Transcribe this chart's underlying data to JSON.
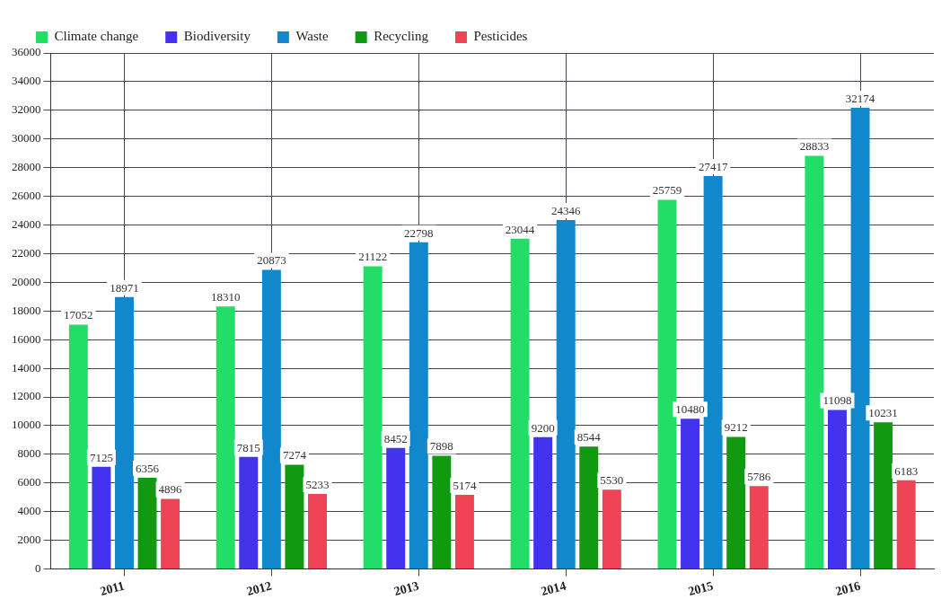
{
  "chart_data": {
    "type": "bar",
    "categories": [
      "2011",
      "2012",
      "2013",
      "2014",
      "2015",
      "2016"
    ],
    "series": [
      {
        "name": "Climate change",
        "color": "#22dd66",
        "values": [
          17052,
          18310,
          21122,
          23044,
          25759,
          28833
        ]
      },
      {
        "name": "Biodiversity",
        "color": "#4433ee",
        "values": [
          7125,
          7815,
          8452,
          9200,
          10480,
          11098
        ]
      },
      {
        "name": "Waste",
        "color": "#1188cc",
        "values": [
          18971,
          20873,
          22798,
          24346,
          27417,
          32174
        ]
      },
      {
        "name": "Recycling",
        "color": "#119911",
        "values": [
          6356,
          7274,
          7898,
          8544,
          9212,
          10231
        ]
      },
      {
        "name": "Pesticides",
        "color": "#ee4455",
        "values": [
          4896,
          5233,
          5174,
          5530,
          5786,
          6183
        ]
      }
    ],
    "ylim": [
      0,
      36000
    ],
    "yticks": [
      0,
      2000,
      4000,
      6000,
      8000,
      10000,
      12000,
      14000,
      16000,
      18000,
      20000,
      22000,
      24000,
      26000,
      28000,
      30000,
      32000,
      34000,
      36000
    ],
    "grid": true,
    "legend": "top left",
    "data_labels": true
  }
}
